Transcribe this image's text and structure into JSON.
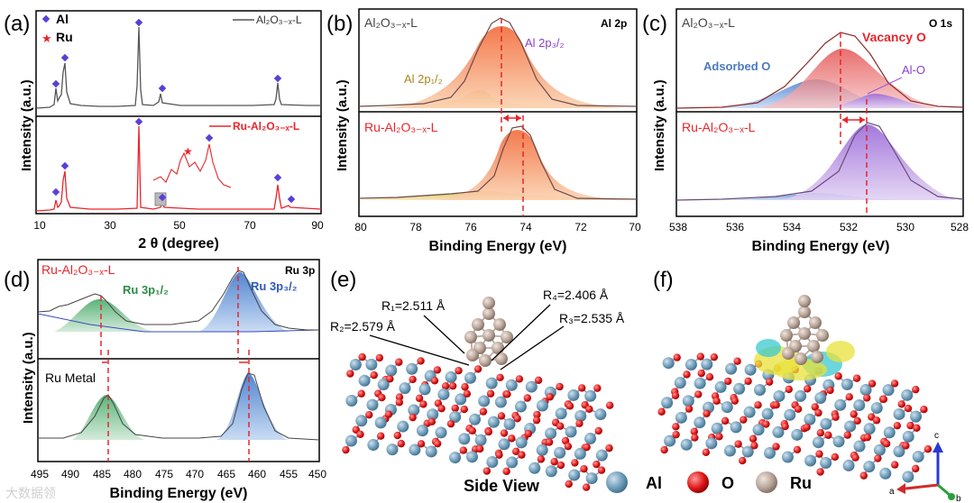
{
  "panels": {
    "a": {
      "label": "(a)",
      "xlabel": "2 θ (degree)",
      "ylabel": "Intensity (a.u.)",
      "xticks": [
        "10",
        "30",
        "50",
        "70",
        "90"
      ],
      "legend_top": "Al₂O₃₋ₓ-L",
      "legend_bottom": "Ru-Al₂O₃₋ₓ-L",
      "marker_al": "Al",
      "marker_ru": "Ru"
    },
    "b": {
      "label": "(b)",
      "xlabel": "Binding Energy (eV)",
      "ylabel": "Intensity (a.u.)",
      "xticks": [
        "80",
        "78",
        "76",
        "74",
        "72",
        "70"
      ],
      "top_label": "Al₂O₃₋ₓ-L",
      "bottom_label": "Ru-Al₂O₃₋ₓ-L",
      "corner": "Al 2p",
      "peak1": "Al 2p₃/₂",
      "peak2": "Al 2p₁/₂"
    },
    "c": {
      "label": "(c)",
      "xlabel": "Binding Energy (eV)",
      "ylabel": "Intensity (a.u.)",
      "xticks": [
        "538",
        "536",
        "534",
        "532",
        "530",
        "528"
      ],
      "top_label": "Al₂O₃₋ₓ-L",
      "bottom_label": "Ru-Al₂O₃₋ₓ-L",
      "corner": "O 1s",
      "vacancy": "Vacancy O",
      "adsorbed": "Adsorbed O",
      "alo": "Al-O"
    },
    "d": {
      "label": "(d)",
      "xlabel": "Binding Energy (eV)",
      "ylabel": "Intensity (a.u.)",
      "xticks": [
        "495",
        "490",
        "485",
        "480",
        "475",
        "470",
        "465",
        "460",
        "455",
        "450"
      ],
      "top_label": "Ru-Al₂O₃₋ₓ-L",
      "bottom_label": "Ru Metal",
      "corner": "Ru 3p",
      "peak1": "Ru 3p₁/₂",
      "peak2": "Ru 3p₃/₂"
    },
    "e": {
      "label": "(e)",
      "r1": "R₁=2.511 Å",
      "r2": "R₂=2.579 Å",
      "r3": "R₃=2.535 Å",
      "r4": "R₄=2.406 Å",
      "caption": "Side View"
    },
    "f": {
      "label": "(f)"
    }
  },
  "legend": {
    "al": "Al",
    "o": "O",
    "ru": "Ru"
  },
  "axes_labels": {
    "a": "a",
    "b": "b",
    "c": "c"
  },
  "watermark": "大数据领",
  "colors": {
    "red": "#e8252a",
    "blue": "#2b4fd0",
    "orange": "#f07a2e",
    "gold": "#c9a22a",
    "purple": "#9b5ad6",
    "green": "#3a9a55"
  }
}
